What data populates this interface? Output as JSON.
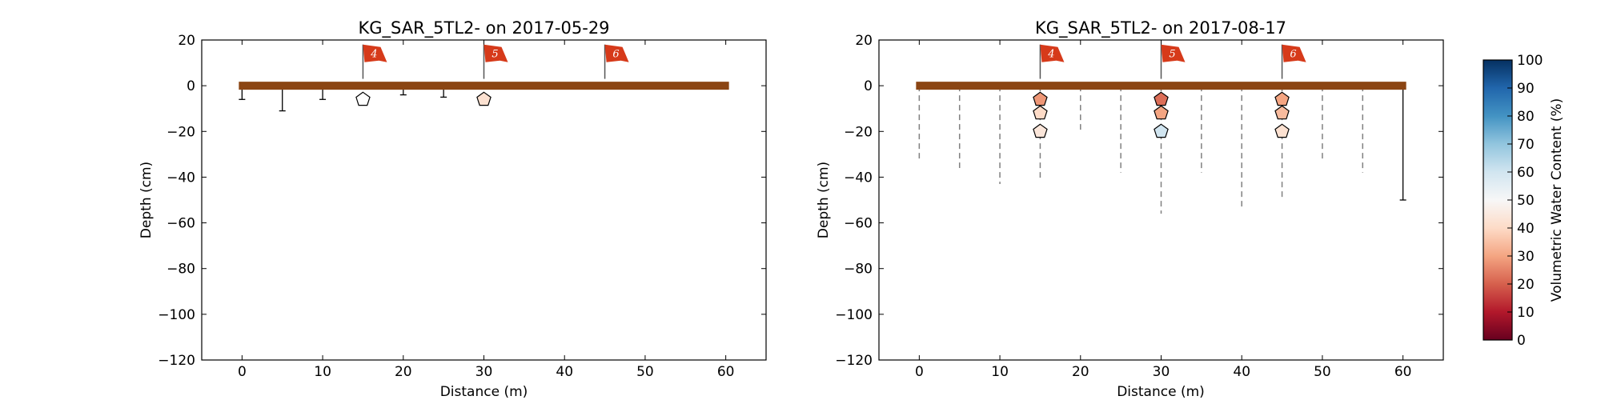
{
  "colors": {
    "surface": "#8b4513",
    "flag": "#d63a1a",
    "rod": "#000000",
    "dash": "#808080"
  },
  "colorbar": {
    "label": "Volumetric Water Content (%)",
    "ticks": [
      "0",
      "10",
      "20",
      "30",
      "40",
      "50",
      "60",
      "70",
      "80",
      "90",
      "100"
    ],
    "colormap": "RdBu",
    "range": [
      0,
      100
    ]
  },
  "chart_data": [
    {
      "type": "scatter",
      "title": "KG_SAR_5TL2-  on 2017-05-29",
      "xlabel": "Distance (m)",
      "ylabel": "Depth (cm)",
      "xlim": [
        -5,
        65
      ],
      "ylim": [
        -120,
        20
      ],
      "xticks": [
        "0",
        "10",
        "20",
        "30",
        "40",
        "50",
        "60"
      ],
      "yticks": [
        "20",
        "0",
        "−20",
        "−40",
        "−60",
        "−80",
        "−100",
        "−120"
      ],
      "surface": {
        "x_start": 0,
        "x_end": 60,
        "depth": 0
      },
      "flags": [
        {
          "label": "4",
          "x": 15
        },
        {
          "label": "5",
          "x": 30
        },
        {
          "label": "6",
          "x": 45
        }
      ],
      "probe_depths": [
        {
          "x": 0,
          "depth": -6,
          "style": "solid"
        },
        {
          "x": 5,
          "depth": -11,
          "style": "solid"
        },
        {
          "x": 10,
          "depth": -6,
          "style": "solid"
        },
        {
          "x": 20,
          "depth": -4,
          "style": "solid"
        },
        {
          "x": 25,
          "depth": -5,
          "style": "solid"
        }
      ],
      "sensors": [
        {
          "x": 15,
          "depth": -6,
          "vwc": null
        },
        {
          "x": 30,
          "depth": -6,
          "vwc": 42
        }
      ]
    },
    {
      "type": "scatter",
      "title": "KG_SAR_5TL2-  on 2017-08-17",
      "xlabel": "Distance (m)",
      "ylabel": "Depth (cm)",
      "xlim": [
        -5,
        65
      ],
      "ylim": [
        -120,
        20
      ],
      "xticks": [
        "0",
        "10",
        "20",
        "30",
        "40",
        "50",
        "60"
      ],
      "yticks": [
        "20",
        "0",
        "−20",
        "−40",
        "−60",
        "−80",
        "−100",
        "−120"
      ],
      "surface": {
        "x_start": 0,
        "x_end": 60,
        "depth": 0
      },
      "flags": [
        {
          "label": "4",
          "x": 15
        },
        {
          "label": "5",
          "x": 30
        },
        {
          "label": "6",
          "x": 45
        }
      ],
      "probe_depths": [
        {
          "x": 0,
          "depth": -32,
          "style": "dashed"
        },
        {
          "x": 5,
          "depth": -36,
          "style": "dashed"
        },
        {
          "x": 10,
          "depth": -43,
          "style": "dashed"
        },
        {
          "x": 15,
          "depth": -42,
          "style": "dashed"
        },
        {
          "x": 20,
          "depth": -20,
          "style": "dashed"
        },
        {
          "x": 25,
          "depth": -38,
          "style": "dashed"
        },
        {
          "x": 30,
          "depth": -56,
          "style": "dashed"
        },
        {
          "x": 35,
          "depth": -38,
          "style": "dashed"
        },
        {
          "x": 40,
          "depth": -54,
          "style": "dashed"
        },
        {
          "x": 45,
          "depth": -50,
          "style": "dashed"
        },
        {
          "x": 50,
          "depth": -32,
          "style": "dashed"
        },
        {
          "x": 55,
          "depth": -38,
          "style": "dashed"
        },
        {
          "x": 60,
          "depth": -50,
          "style": "solid"
        }
      ],
      "sensors": [
        {
          "x": 15,
          "depth": -6,
          "vwc": 28
        },
        {
          "x": 15,
          "depth": -12,
          "vwc": 40
        },
        {
          "x": 15,
          "depth": -20,
          "vwc": 44
        },
        {
          "x": 30,
          "depth": -6,
          "vwc": 22
        },
        {
          "x": 30,
          "depth": -12,
          "vwc": 30
        },
        {
          "x": 30,
          "depth": -20,
          "vwc": 60
        },
        {
          "x": 45,
          "depth": -6,
          "vwc": 30
        },
        {
          "x": 45,
          "depth": -12,
          "vwc": 34
        },
        {
          "x": 45,
          "depth": -20,
          "vwc": 42
        }
      ]
    }
  ]
}
